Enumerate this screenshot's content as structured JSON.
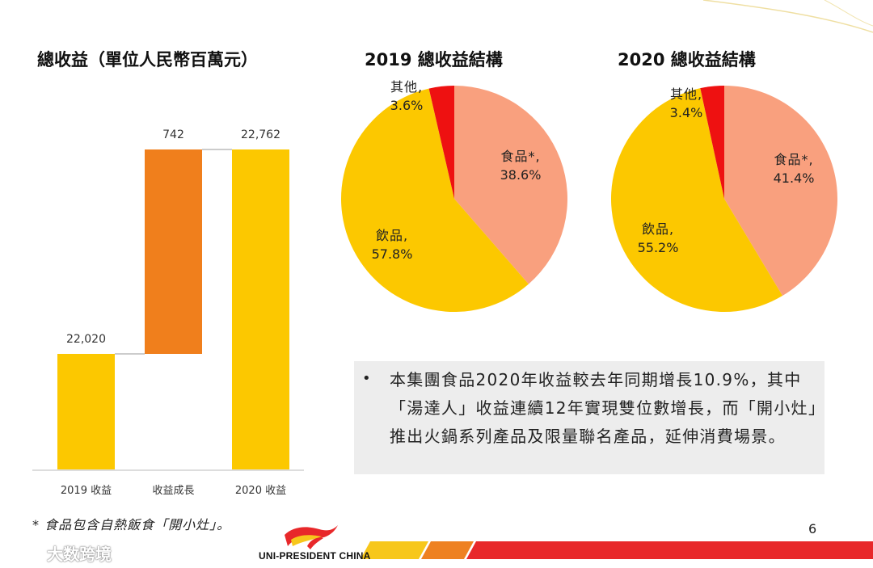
{
  "colors": {
    "yellow": "#FCC800",
    "orange": "#F07F1C",
    "salmon": "#F9A07E",
    "red": "#EE1111",
    "stripe_yellow": "#F7C71B",
    "stripe_orange": "#EE8121",
    "stripe_red": "#E8282A",
    "bullet_bg": "#EDEDED"
  },
  "bullet": {
    "symbol": "•",
    "text": "本集團食品2020年收益較去年同期增長10.9%，其中「湯達人」收益連續12年實現雙位數增長，而「開小灶」推出火鍋系列產品及限量聯名產品，延伸消費場景。"
  },
  "footnote": "* 食品包含自熱飯食「開小灶」。",
  "page_number": "6",
  "logo": {
    "text": "UNI-PRESIDENT CHINA"
  },
  "watermark": {
    "text": "大数跨境"
  },
  "chart_data": [
    {
      "type": "bar",
      "subtype": "waterfall",
      "title": "總收益（單位人民幣百萬元）",
      "categories": [
        "2019 收益",
        "收益成長",
        "2020 收益"
      ],
      "values": [
        22020,
        742,
        22762
      ],
      "labels": [
        "22,020",
        "742",
        "22,762"
      ],
      "bases": [
        0,
        22020,
        0
      ],
      "colors": [
        "#FCC800",
        "#F07F1C",
        "#FCC800"
      ],
      "ylim": [
        0,
        23000
      ],
      "axis_break": true,
      "grid": false
    },
    {
      "type": "pie",
      "title": "2019 總收益結構",
      "slices": [
        {
          "name": "食品*",
          "value": 38.6,
          "label": "38.6%",
          "color": "#F9A07E"
        },
        {
          "name": "飲品",
          "value": 57.8,
          "label": "57.8%",
          "color": "#FCC800"
        },
        {
          "name": "其他",
          "value": 3.6,
          "label": "3.6%",
          "color": "#EE1111"
        }
      ]
    },
    {
      "type": "pie",
      "title": "2020 總收益結構",
      "slices": [
        {
          "name": "食品*",
          "value": 41.4,
          "label": "41.4%",
          "color": "#F9A07E"
        },
        {
          "name": "飲品",
          "value": 55.2,
          "label": "55.2%",
          "color": "#FCC800"
        },
        {
          "name": "其他",
          "value": 3.4,
          "label": "3.4%",
          "color": "#EE1111"
        }
      ]
    }
  ]
}
